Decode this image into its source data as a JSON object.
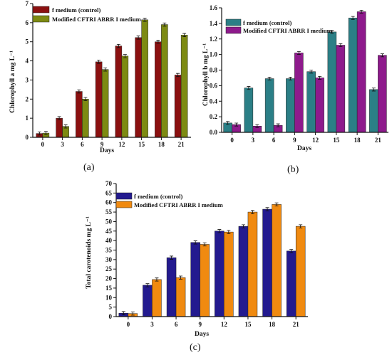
{
  "chart_data": [
    {
      "type": "bar",
      "caption": "(a)",
      "xlabel": "Days",
      "ylabel": "Chlorophyll a mg L⁻¹",
      "categories": [
        "0",
        "3",
        "6",
        "9",
        "12",
        "15",
        "18",
        "21"
      ],
      "ylim": [
        0,
        7
      ],
      "yticks": [
        "0",
        "1",
        "2",
        "3",
        "4",
        "5",
        "6",
        "7"
      ],
      "series": [
        {
          "name": "f medium (control)",
          "color": "#8b1010",
          "values": [
            0.2,
            1.0,
            2.4,
            3.95,
            4.78,
            5.22,
            5.0,
            3.26
          ]
        },
        {
          "name": "Modified CFTRI ABRR I medium",
          "color": "#7d8a12",
          "values": [
            0.22,
            0.57,
            2.0,
            3.55,
            4.25,
            6.15,
            5.9,
            5.35
          ]
        }
      ],
      "grid": false,
      "legend": "top-left"
    },
    {
      "type": "bar",
      "caption": "(b)",
      "xlabel": "Days",
      "ylabel": "Chlorophyll b mg L⁻¹",
      "categories": [
        "0",
        "3",
        "6",
        "9",
        "12",
        "15",
        "18",
        "21"
      ],
      "ylim": [
        0,
        1.6
      ],
      "yticks": [
        "0.0",
        "0.2",
        "0.4",
        "0.6",
        "0.8",
        "1.0",
        "1.2",
        "1.4",
        "1.6"
      ],
      "series": [
        {
          "name": "f medium (control)",
          "color": "#2b7f86",
          "values": [
            0.12,
            0.57,
            0.69,
            0.69,
            0.78,
            1.29,
            1.47,
            0.55
          ]
        },
        {
          "name": "Modified CFTRI ABRR I medium",
          "color": "#8e1a8c",
          "values": [
            0.1,
            0.08,
            0.09,
            1.02,
            0.7,
            1.12,
            1.55,
            0.99
          ]
        }
      ],
      "grid": false,
      "legend": "top-left"
    },
    {
      "type": "bar",
      "caption": "(c)",
      "xlabel": "Days",
      "ylabel": "Total carotenoids mg L⁻¹",
      "categories": [
        "0",
        "3",
        "6",
        "9",
        "12",
        "15",
        "18",
        "21"
      ],
      "ylim": [
        0,
        70
      ],
      "yticks": [
        "0",
        "5",
        "10",
        "15",
        "20",
        "25",
        "30",
        "35",
        "40",
        "45",
        "50",
        "55",
        "60",
        "65",
        "70"
      ],
      "series": [
        {
          "name": "f medium (control)",
          "color": "#231a8f",
          "values": [
            1.8,
            16.5,
            31.0,
            39.0,
            45.0,
            47.5,
            56.5,
            34.5
          ]
        },
        {
          "name": "Modified CFTRI ABRR I medium",
          "color": "#f08a10",
          "values": [
            1.6,
            19.5,
            20.5,
            38.0,
            44.5,
            55.0,
            59.0,
            47.5
          ]
        }
      ],
      "grid": false,
      "legend": "top-left"
    }
  ]
}
